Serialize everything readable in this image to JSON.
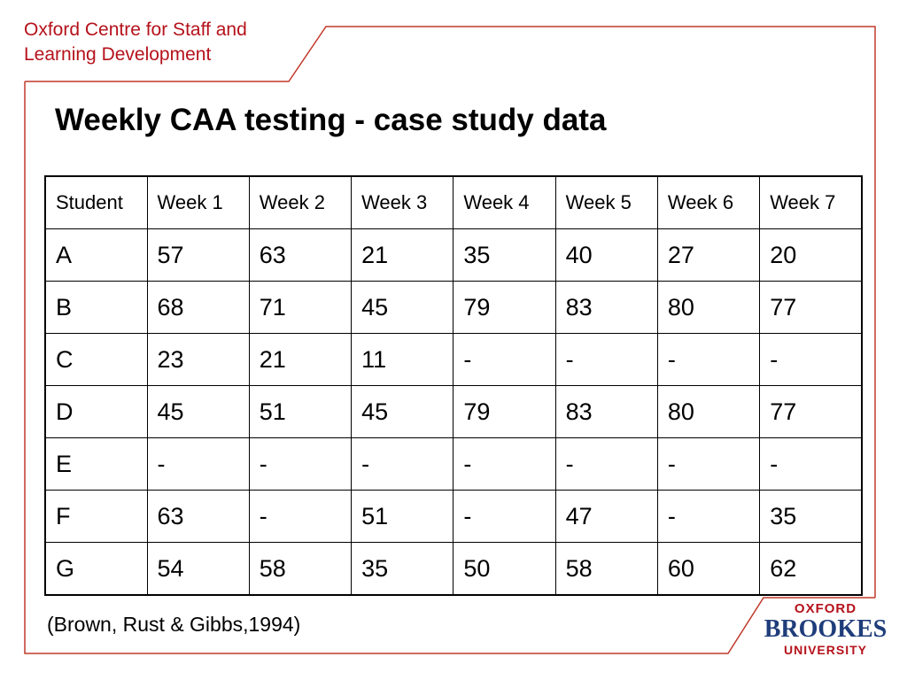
{
  "header": {
    "org_line1": "Oxford Centre for Staff and",
    "org_line2": "Learning Development"
  },
  "slide": {
    "title": "Weekly CAA testing - case study data",
    "citation": "(Brown, Rust & Gibbs,1994)"
  },
  "table": {
    "columns": [
      "Student",
      "Week 1",
      "Week 2",
      "Week 3",
      "Week 4",
      "Week 5",
      "Week 6",
      "Week 7"
    ],
    "rows": [
      [
        "A",
        "57",
        "63",
        "21",
        "35",
        "40",
        "27",
        "20"
      ],
      [
        "B",
        "68",
        "71",
        "45",
        "79",
        "83",
        "80",
        "77"
      ],
      [
        "C",
        "23",
        "21",
        "11",
        "-",
        "-",
        "-",
        "-"
      ],
      [
        "D",
        "45",
        "51",
        "45",
        "79",
        "83",
        "80",
        "77"
      ],
      [
        "E",
        "-",
        "-",
        "-",
        "-",
        "-",
        "-",
        "-"
      ],
      [
        "F",
        "63",
        "-",
        "51",
        "-",
        "47",
        "-",
        "35"
      ],
      [
        "G",
        "54",
        "58",
        "35",
        "50",
        "58",
        "60",
        "62"
      ]
    ]
  },
  "logo": {
    "line1": "OXFORD",
    "line2": "BROOKES",
    "line3": "UNIVERSITY"
  },
  "colors": {
    "brand_red": "#b5121b",
    "brand_blue": "#1f3d7a",
    "frame_line": "#c0392b"
  }
}
